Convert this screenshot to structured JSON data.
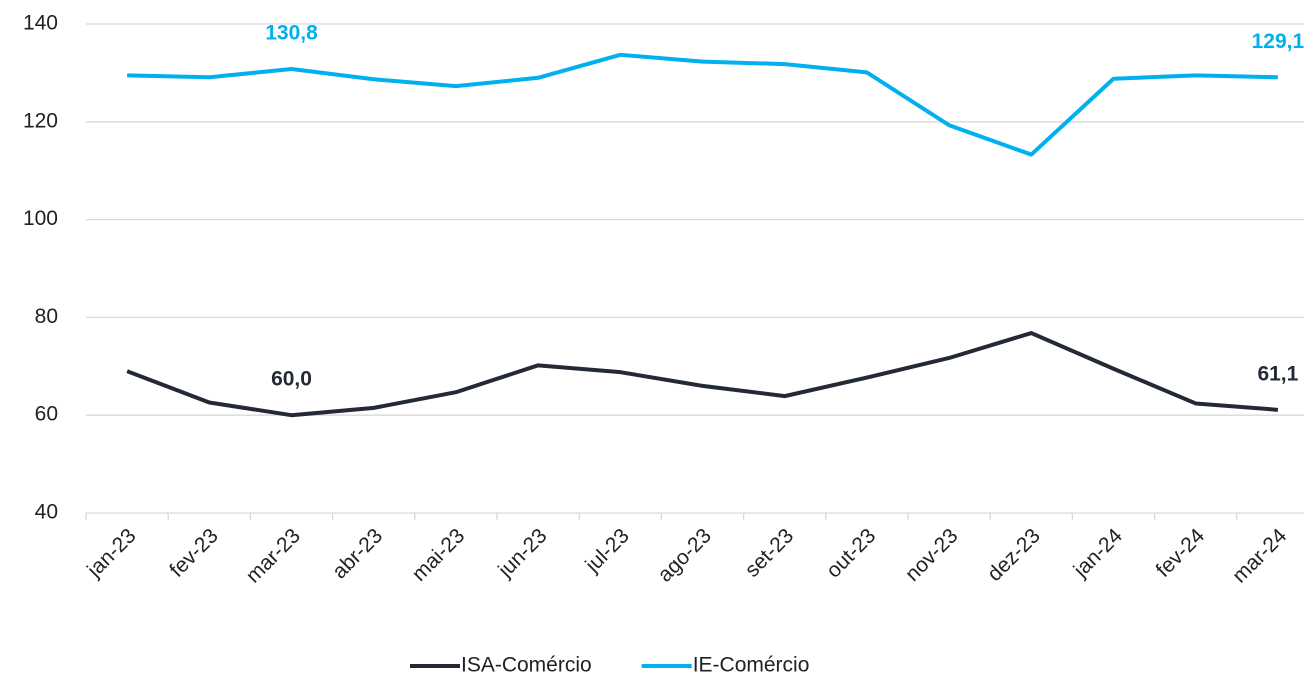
{
  "chart_data": {
    "type": "line",
    "categories": [
      "jan-23",
      "fev-23",
      "mar-23",
      "abr-23",
      "mai-23",
      "jun-23",
      "jul-23",
      "ago-23",
      "set-23",
      "out-23",
      "nov-23",
      "dez-23",
      "jan-24",
      "fev-24",
      "mar-24"
    ],
    "series": [
      {
        "name": "ISA-Comércio",
        "color": "#232a35",
        "values": [
          69.0,
          62.6,
          60.0,
          61.5,
          64.7,
          70.2,
          68.8,
          66.0,
          63.9,
          67.7,
          71.7,
          76.8,
          69.5,
          62.4,
          61.1
        ],
        "value_labels": [
          null,
          null,
          "60,0",
          null,
          null,
          null,
          null,
          null,
          null,
          null,
          null,
          null,
          null,
          null,
          "61,1"
        ]
      },
      {
        "name": "IE-Comércio",
        "color": "#00b0f0",
        "values": [
          129.5,
          129.1,
          130.8,
          128.7,
          127.3,
          129.0,
          133.7,
          132.3,
          131.8,
          130.1,
          119.3,
          113.3,
          128.8,
          129.5,
          129.1
        ],
        "value_labels": [
          null,
          null,
          "130,8",
          null,
          null,
          null,
          null,
          null,
          null,
          null,
          null,
          null,
          null,
          null,
          "129,1"
        ]
      }
    ],
    "ylim": [
      40,
      140
    ],
    "yticks": [
      40,
      60,
      80,
      100,
      120,
      140
    ],
    "grid": true,
    "legend": "bottom"
  }
}
